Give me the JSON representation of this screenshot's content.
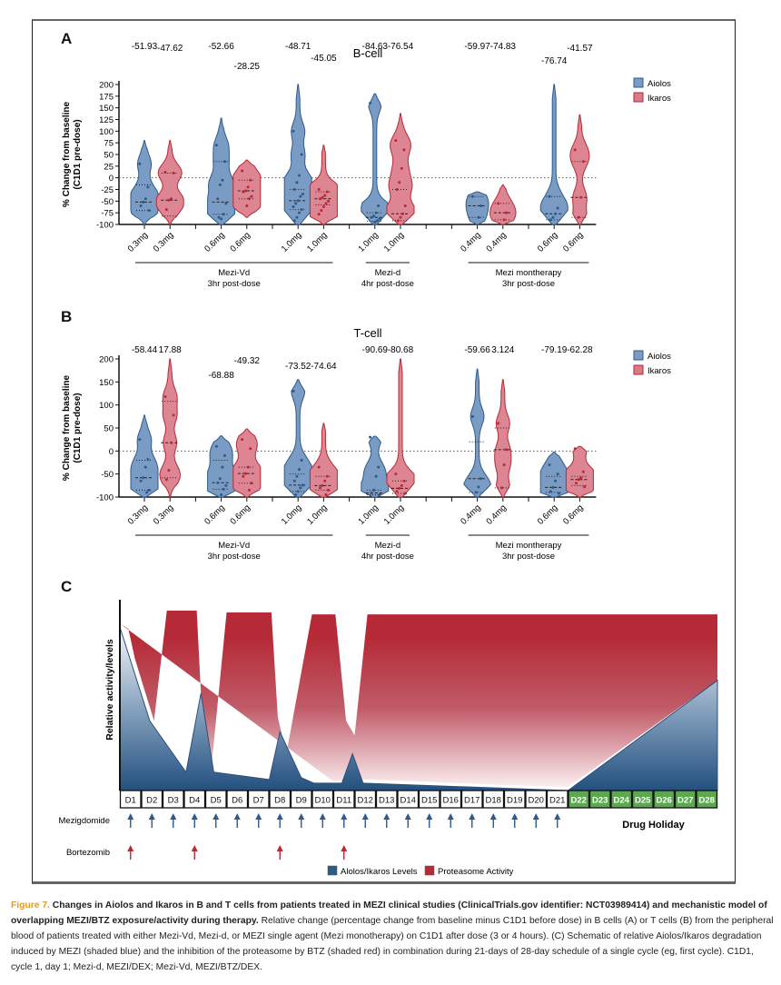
{
  "panels": {
    "A": {
      "letter": "A",
      "title": "B-cell"
    },
    "B": {
      "letter": "B",
      "title": "T-cell"
    },
    "C": {
      "letter": "C"
    }
  },
  "chart_data": [
    {
      "type": "violin",
      "panel": "A",
      "title": "B-cell",
      "ylabel": "% Change from baseline (C1D1 pre-dose)",
      "ylabel_lines": [
        "% Change from baseline",
        "(C1D1 pre-dose)"
      ],
      "ylim": [
        -100,
        200
      ],
      "yticks": [
        -100,
        -75,
        -50,
        -25,
        0,
        25,
        50,
        75,
        100,
        125,
        150,
        175,
        200
      ],
      "reference_line": 0,
      "legend": {
        "position": "top-right",
        "entries": [
          {
            "name": "Aiolos",
            "color": "#7a9cc4"
          },
          {
            "name": "Ikaros",
            "color": "#d97a88"
          }
        ]
      },
      "groups": [
        {
          "name": "Mezi-Vd",
          "subtitle": "3hr post-dose",
          "slots": [
            0,
            5
          ]
        },
        {
          "name": "Mezi-d",
          "subtitle": "4hr post-dose",
          "slots": [
            9,
            10
          ]
        },
        {
          "name": "Mezi montherapy",
          "subtitle": "3hr post-dose",
          "slots": [
            13,
            16
          ]
        }
      ],
      "series": [
        {
          "slot": 0,
          "label": "0.3mg",
          "marker": "Aiolos",
          "median_label": "-51.93",
          "min": -100,
          "max": 80,
          "median": -52,
          "q1": -70,
          "q3": -15,
          "points": [
            30,
            -20,
            -45,
            -52,
            -60,
            -70
          ]
        },
        {
          "slot": 1,
          "label": "0.3mg",
          "marker": "Ikaros",
          "median_label": "-47.62",
          "min": -100,
          "max": 80,
          "median": -48,
          "q1": -82,
          "q3": 10,
          "points": [
            12,
            10,
            -45,
            -48,
            -68
          ]
        },
        {
          "slot": 3,
          "label": "0.6mg",
          "marker": "Aiolos",
          "median_label": "-52.66",
          "min": -100,
          "max": 128,
          "median": -52,
          "q1": -78,
          "q3": 35,
          "points": [
            70,
            35,
            -5,
            -15,
            -45,
            -55,
            -78,
            -88,
            -85
          ]
        },
        {
          "slot": 4,
          "label": "0.6mg",
          "marker": "Ikaros",
          "median_label": "-28.25",
          "min": -85,
          "max": 38,
          "median": -28,
          "q1": -45,
          "q3": -5,
          "points": [
            15,
            -5,
            -20,
            -28,
            -30,
            -40,
            -45,
            -60
          ]
        },
        {
          "slot": 6,
          "label": "1.0mg",
          "marker": "Aiolos",
          "median_label": "-48.71",
          "min": -100,
          "max": 200,
          "median": -49,
          "q1": -68,
          "q3": -25,
          "points": [
            100,
            50,
            5,
            -10,
            -25,
            -35,
            -40,
            -49,
            -55,
            -62,
            -68,
            -75,
            -85,
            -92
          ]
        },
        {
          "slot": 7,
          "label": "1.0mg",
          "marker": "Ikaros",
          "median_label": "-45.05",
          "min": -100,
          "max": 70,
          "median": -45,
          "q1": -58,
          "q3": -30,
          "points": [
            -25,
            -30,
            -38,
            -42,
            -45,
            -50,
            -55,
            -62,
            -70,
            -78
          ]
        },
        {
          "slot": 9,
          "label": "1.0mg",
          "marker": "Aiolos",
          "median_label": "-84.63",
          "min": -100,
          "max": 180,
          "median": -85,
          "q1": -93,
          "q3": -75,
          "points": [
            160,
            -60,
            -75,
            -82,
            -85,
            -88,
            -92,
            -95
          ]
        },
        {
          "slot": 10,
          "label": "1.0mg",
          "marker": "Ikaros",
          "median_label": "-76.54",
          "min": -100,
          "max": 138,
          "median": -77,
          "q1": -92,
          "q3": -25,
          "points": [
            80,
            60,
            20,
            -10,
            -25,
            -60,
            -77,
            -85,
            -92
          ]
        },
        {
          "slot": 13,
          "label": "0.4mg",
          "marker": "Aiolos",
          "median_label": "-59.97",
          "min": -100,
          "max": -30,
          "median": -60,
          "q1": -85,
          "q3": -40,
          "points": [
            -40,
            -60,
            -85
          ]
        },
        {
          "slot": 14,
          "label": "0.4mg",
          "marker": "Ikaros",
          "median_label": "-74.83",
          "min": -100,
          "max": -15,
          "median": -75,
          "q1": -90,
          "q3": -55,
          "points": [
            -55,
            -75,
            -90
          ]
        },
        {
          "slot": 16,
          "label": "0.6mg",
          "marker": "Aiolos",
          "median_label": "-76.74",
          "min": -100,
          "max": 200,
          "median": -77,
          "q1": -90,
          "q3": -40,
          "points": [
            -40,
            -65,
            -77,
            -85,
            -90
          ]
        },
        {
          "slot": 17,
          "label": "0.6mg",
          "marker": "Ikaros",
          "median_label": "-41.57",
          "min": -100,
          "max": 135,
          "median": -42,
          "q1": -85,
          "q3": 35,
          "points": [
            60,
            35,
            -42,
            -85
          ]
        }
      ]
    },
    {
      "type": "violin",
      "panel": "B",
      "title": "T-cell",
      "ylabel": "% Change from baseline (C1D1 pre-dose)",
      "ylabel_lines": [
        "% Change from baseline",
        "(C1D1 pre-dose)"
      ],
      "ylim": [
        -100,
        200
      ],
      "yticks": [
        -100,
        -50,
        0,
        50,
        100,
        150,
        200
      ],
      "reference_line": 0,
      "legend": {
        "position": "top-right",
        "entries": [
          {
            "name": "Aiolos",
            "color": "#7a9cc4"
          },
          {
            "name": "Ikaros",
            "color": "#d97a88"
          }
        ]
      },
      "groups": [
        {
          "name": "Mezi-Vd",
          "subtitle": "3hr post-dose",
          "slots": [
            0,
            5
          ]
        },
        {
          "name": "Mezi-d",
          "subtitle": "4hr post-dose",
          "slots": [
            9,
            10
          ]
        },
        {
          "name": "Mezi montherapy",
          "subtitle": "3hr post-dose",
          "slots": [
            13,
            16
          ]
        }
      ],
      "series": [
        {
          "slot": 0,
          "label": "0.3mg",
          "marker": "Aiolos",
          "median_label": "-58.44",
          "min": -100,
          "max": 78,
          "median": -58,
          "q1": -85,
          "q3": -20,
          "points": [
            25,
            -18,
            -35,
            -58,
            -65,
            -85,
            -90
          ]
        },
        {
          "slot": 1,
          "label": "0.3mg",
          "marker": "Ikaros",
          "median_label": "17.88",
          "min": -100,
          "max": 200,
          "median": 18,
          "q1": -58,
          "q3": 108,
          "points": [
            118,
            78,
            18,
            -42,
            -62
          ]
        },
        {
          "slot": 3,
          "label": "0.6mg",
          "marker": "Aiolos",
          "median_label": "-68.88",
          "min": -100,
          "max": 33,
          "median": -69,
          "q1": -83,
          "q3": -20,
          "points": [
            10,
            -10,
            -35,
            -60,
            -69,
            -75,
            -83,
            -95
          ]
        },
        {
          "slot": 4,
          "label": "0.6mg",
          "marker": "Ikaros",
          "median_label": "-49.32",
          "min": -100,
          "max": 48,
          "median": -49,
          "q1": -70,
          "q3": -35,
          "points": [
            25,
            5,
            -35,
            -49,
            -55,
            -70,
            -85
          ]
        },
        {
          "slot": 6,
          "label": "1.0mg",
          "marker": "Aiolos",
          "median_label": "-73.52",
          "min": -100,
          "max": 155,
          "median": -74,
          "q1": -88,
          "q3": -50,
          "points": [
            130,
            -20,
            -40,
            -55,
            -65,
            -74,
            -80,
            -88,
            -95
          ]
        },
        {
          "slot": 7,
          "label": "1.0mg",
          "marker": "Ikaros",
          "median_label": "-74.64",
          "min": -100,
          "max": 60,
          "median": -75,
          "q1": -85,
          "q3": -55,
          "points": [
            -35,
            -55,
            -65,
            -75,
            -80,
            -85,
            -95
          ]
        },
        {
          "slot": 9,
          "label": "1.0mg",
          "marker": "Aiolos",
          "median_label": "-90.69",
          "min": -100,
          "max": 32,
          "median": -91,
          "q1": -95,
          "q3": -85,
          "points": [
            30,
            -35,
            -55,
            -85,
            -91,
            -95
          ]
        },
        {
          "slot": 10,
          "label": "1.0mg",
          "marker": "Ikaros",
          "median_label": "-80.68",
          "min": -100,
          "max": 200,
          "median": -81,
          "q1": -92,
          "q3": -65,
          "points": [
            -50,
            -65,
            -75,
            -81,
            -88,
            -92
          ]
        },
        {
          "slot": 13,
          "label": "0.4mg",
          "marker": "Aiolos",
          "median_label": "-59.66",
          "min": -100,
          "max": 178,
          "median": -60,
          "q1": -90,
          "q3": 20,
          "points": [
            75,
            -60,
            -78,
            -90
          ]
        },
        {
          "slot": 14,
          "label": "0.4mg",
          "marker": "Ikaros",
          "median_label": "3.124",
          "min": -100,
          "max": 155,
          "median": 3,
          "q1": -80,
          "q3": 50,
          "points": [
            60,
            3,
            -30,
            -80
          ]
        },
        {
          "slot": 16,
          "label": "0.6mg",
          "marker": "Aiolos",
          "median_label": "-79.19",
          "min": -100,
          "max": -2,
          "median": -79,
          "q1": -90,
          "q3": -55,
          "points": [
            -30,
            -50,
            -65,
            -79,
            -88,
            -92
          ]
        },
        {
          "slot": 17,
          "label": "0.6mg",
          "marker": "Ikaros",
          "median_label": "-62.28",
          "min": -100,
          "max": 10,
          "median": -62,
          "q1": -75,
          "q3": -55,
          "points": [
            5,
            -45,
            -58,
            -62,
            -70,
            -78
          ]
        }
      ]
    },
    {
      "type": "area",
      "panel": "C",
      "title": "",
      "ylabel": "Relative activity/levels",
      "xlabel": "",
      "days": [
        "D1",
        "D2",
        "D3",
        "D4",
        "D5",
        "D6",
        "D7",
        "D8",
        "D9",
        "D10",
        "D11",
        "D12",
        "D13",
        "D14",
        "D15",
        "D16",
        "D17",
        "D18",
        "D19",
        "D20",
        "D21",
        "D22",
        "D23",
        "D24",
        "D25",
        "D26",
        "D27",
        "D28"
      ],
      "holiday_days": [
        "D22",
        "D23",
        "D24",
        "D25",
        "D26",
        "D27",
        "D28"
      ],
      "holiday_label": "Drug Holiday",
      "series": [
        {
          "name": "Proteasome Activity",
          "color": "#b52a36",
          "description": "Relative proteasome activity (shaded red) — inhibited by BTZ on D1, D4, D8, D11",
          "points_day_value": [
            [
              0.0,
              0.91
            ],
            [
              0.4,
              0.88
            ],
            [
              0.7,
              0.72
            ],
            [
              1.6,
              0.38
            ],
            [
              2.2,
              0.98
            ],
            [
              3.6,
              0.98
            ],
            [
              3.9,
              0.3
            ],
            [
              4.3,
              0.14
            ],
            [
              5.0,
              0.97
            ],
            [
              7.1,
              0.97
            ],
            [
              7.4,
              0.4
            ],
            [
              7.8,
              0.2
            ],
            [
              9.0,
              0.96
            ],
            [
              10.1,
              0.96
            ],
            [
              10.6,
              0.38
            ],
            [
              11.0,
              0.3
            ],
            [
              11.6,
              0.96
            ],
            [
              28.0,
              0.96
            ],
            [
              28.0,
              0.6
            ],
            [
              21.0,
              0.02
            ],
            [
              18.0,
              0.03
            ],
            [
              14.0,
              0.05
            ],
            [
              11.5,
              0.06
            ],
            [
              10.0,
              0.05
            ]
          ]
        },
        {
          "name": "Aiolos/Ikaros Levels",
          "color": "#2d5a8a",
          "description": "Relative Aiolos/Ikaros levels (shaded blue) induced by MEZI",
          "points_day_value": [
            [
              0.0,
              0.89
            ],
            [
              1.4,
              0.38
            ],
            [
              3.1,
              0.1
            ],
            [
              3.8,
              0.53
            ],
            [
              4.4,
              0.1
            ],
            [
              7.0,
              0.06
            ],
            [
              7.5,
              0.32
            ],
            [
              8.5,
              0.07
            ],
            [
              9.1,
              0.04
            ],
            [
              10.4,
              0.04
            ],
            [
              10.9,
              0.2
            ],
            [
              11.4,
              0.04
            ],
            [
              21.0,
              0.0
            ],
            [
              28.0,
              0.6
            ]
          ]
        }
      ],
      "doses": [
        {
          "drug": "Mezigdomide",
          "color": "#2d5a8a",
          "days": [
            "D1",
            "D2",
            "D3",
            "D4",
            "D5",
            "D6",
            "D7",
            "D8",
            "D9",
            "D10",
            "D11",
            "D12",
            "D13",
            "D14",
            "D15",
            "D16",
            "D17",
            "D18",
            "D19",
            "D20",
            "D21"
          ]
        },
        {
          "drug": "Bortezomib",
          "color": "#b52a36",
          "days": [
            "D1",
            "D4",
            "D8",
            "D11"
          ]
        }
      ],
      "legend": {
        "position": "bottom-center",
        "entries": [
          {
            "name": "Alolos/Ikaros Levels",
            "color": "#2d5a8a"
          },
          {
            "name": "Proteasome Activity",
            "color": "#b52a36"
          }
        ]
      }
    }
  ],
  "caption": {
    "figure_label": "Figure 7.",
    "title": "Changes in Aiolos and Ikaros in B and T cells from patients treated in MEZI clinical studies (ClinicalTrials.gov identifier: NCT03989414) and mechanistic model of overlapping MEZI/BTZ exposure/activity during therapy.",
    "body": "Relative change (percentage change from baseline minus C1D1 before dose) in B cells (A) or T cells (B) from the peripheral blood of patients treated with either Mezi-Vd, Mezi-d, or MEZI single agent (Mezi monotherapy) on C1D1 after dose (3 or 4 hours). (C) Schematic of relative Aiolos/Ikaros degradation induced by MEZI (shaded blue) and the inhibition of the proteasome by BTZ (shaded red) in combination during 21-days of 28-day schedule of a single cycle (eg, first cycle). C1D1, cycle 1, day 1; Mezi-d, MEZI/DEX; Mezi-Vd, MEZI/BTZ/DEX."
  }
}
